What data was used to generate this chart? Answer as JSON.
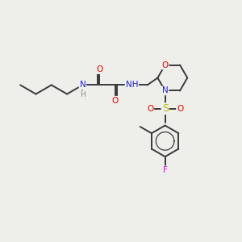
{
  "bg_color": "#eeeeea",
  "bond_color": "#3a3a3a",
  "atom_colors": {
    "O": "#ee0000",
    "N": "#2222dd",
    "S": "#bbbb00",
    "F": "#ee00ee",
    "H": "#888888",
    "C": "#3a3a3a"
  },
  "lw": 1.4,
  "fsz": 7.5
}
